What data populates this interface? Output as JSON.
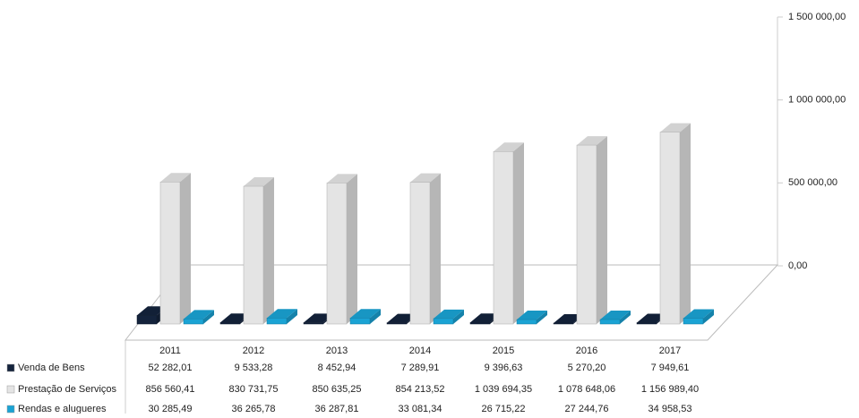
{
  "chart_data": {
    "type": "bar",
    "categories": [
      "2011",
      "2012",
      "2013",
      "2014",
      "2015",
      "2016",
      "2017"
    ],
    "series": [
      {
        "name": "Venda de Bens",
        "color": "#14233c",
        "values": [
          52282.01,
          9533.28,
          8452.94,
          7289.91,
          9396.63,
          5270.2,
          7949.61
        ],
        "value_labels": [
          "52 282,01",
          "9 533,28",
          "8 452,94",
          "7 289,91",
          "9 396,63",
          "5 270,20",
          "7 949,61"
        ]
      },
      {
        "name": "Prestação de Serviços",
        "color": "#e4e4e4",
        "values": [
          856560.41,
          830731.75,
          850635.25,
          854213.52,
          1039694.35,
          1078648.06,
          1156989.4
        ],
        "value_labels": [
          "856 560,41",
          "830 731,75",
          "850 635,25",
          "854 213,52",
          "1 039 694,35",
          "1 078 648,06",
          "1 156 989,40"
        ]
      },
      {
        "name": "Rendas e alugueres",
        "color": "#1aa3d4",
        "values": [
          30285.49,
          36265.78,
          36287.81,
          33081.34,
          26715.22,
          27244.76,
          34958.53
        ],
        "value_labels": [
          "30 285,49",
          "36 265,78",
          "36 287,81",
          "33 081,34",
          "26 715,22",
          "27 244,76",
          "34 958,53"
        ]
      }
    ],
    "ylim": [
      0,
      1500000
    ],
    "yticks": [
      {
        "value": 0,
        "label": "0,00"
      },
      {
        "value": 500000,
        "label": "500 000,00"
      },
      {
        "value": 1000000,
        "label": "1 000 000,00"
      },
      {
        "value": 1500000,
        "label": "1 500 000,00"
      }
    ]
  }
}
